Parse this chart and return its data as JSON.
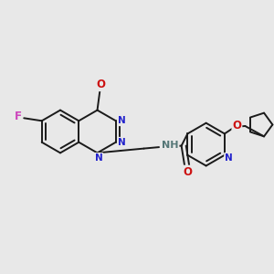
{
  "bg_color": "#e8e8e8",
  "atom_colors": {
    "C": "#000000",
    "N": "#2222cc",
    "O": "#cc1111",
    "F": "#cc44bb",
    "H": "#557777"
  },
  "bond_color": "#1a1a1a",
  "bond_width": 1.4,
  "figsize": [
    3.0,
    3.0
  ],
  "dpi": 100
}
